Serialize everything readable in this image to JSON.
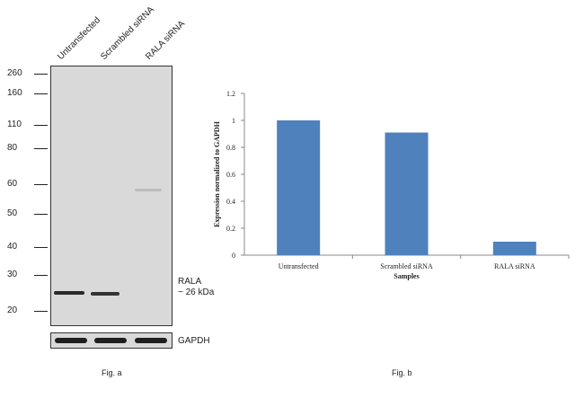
{
  "fig_a": {
    "lanes": [
      "Untransfected",
      "Scrambled siRNA",
      "RALA siRNA"
    ],
    "markers": [
      "260",
      "160",
      "110",
      "80",
      "60",
      "50",
      "40",
      "30",
      "20"
    ],
    "target_label": "RALA",
    "target_size": "~ 26 kDa",
    "loading_label": "GAPDH",
    "caption": "Fig. a"
  },
  "fig_b": {
    "caption": "Fig. b"
  },
  "chart_data": {
    "type": "bar",
    "categories": [
      "Untransfected",
      "Scrambled siRNA",
      "RALA siRNA"
    ],
    "values": [
      1.0,
      0.91,
      0.1
    ],
    "title": "",
    "xlabel": "Samples",
    "ylabel": "Expression normalized to GAPDH",
    "ylim": [
      0,
      1.2
    ],
    "yticks": [
      "0",
      "0.2",
      "0.4",
      "0.6",
      "0.8",
      "1",
      "1.2"
    ],
    "bar_color": "#4f81bd",
    "grid": false
  }
}
